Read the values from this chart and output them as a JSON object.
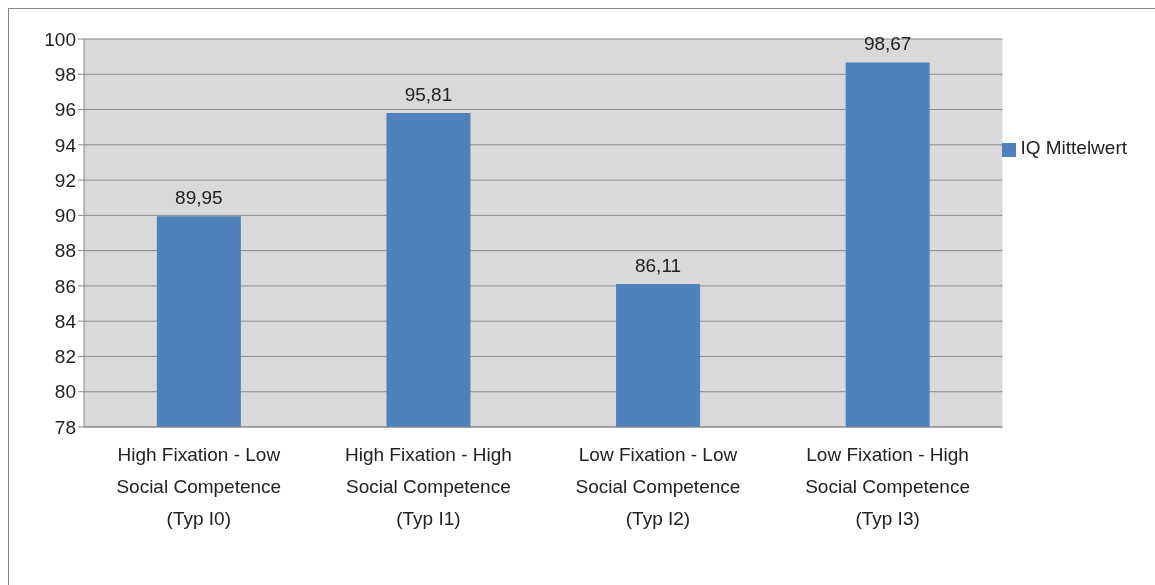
{
  "chart_data": {
    "type": "bar",
    "categories": [
      "High Fixation - Low Social Competence (Typ I0)",
      "High Fixation - High Social Competence (Typ I1)",
      "Low Fixation - Low Social Competence (Typ I2)",
      "Low Fixation - High Social Competence (Typ I3)"
    ],
    "series": [
      {
        "name": "IQ Mittelwert",
        "color": "#4f81bd",
        "values": [
          89.95,
          95.81,
          86.11,
          98.67
        ],
        "value_labels": [
          "89,95",
          "95,81",
          "86,11",
          "98,67"
        ]
      }
    ],
    "ylim": [
      78,
      100
    ],
    "yticks": [
      78,
      80,
      82,
      84,
      86,
      88,
      90,
      92,
      94,
      96,
      98,
      100
    ],
    "grid": "y",
    "legend": "right"
  }
}
